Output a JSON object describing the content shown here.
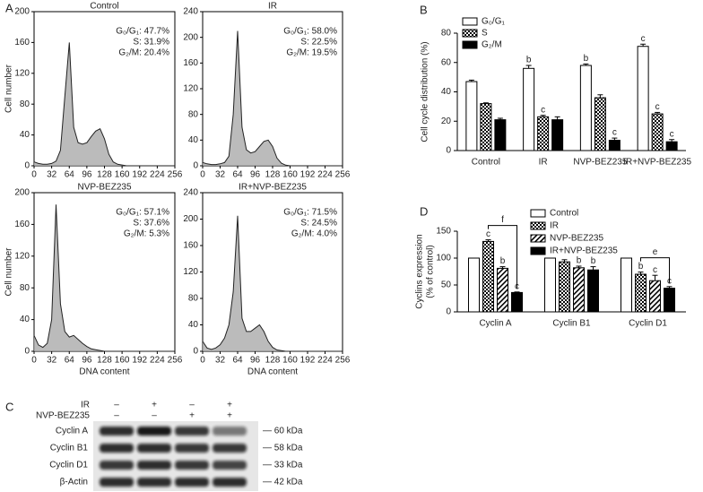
{
  "panel_labels": [
    "A",
    "B",
    "C",
    "D"
  ],
  "chart_data": [
    {
      "type": "area",
      "title": "Control",
      "y_label": "Cell number",
      "annotations": [
        "G₀/G₁: 47.7%",
        "S: 31.9%",
        "G₂/M: 20.4%"
      ],
      "x": [
        0,
        8,
        16,
        24,
        32,
        40,
        48,
        56,
        64,
        72,
        80,
        88,
        96,
        104,
        112,
        120,
        128,
        136,
        144,
        152,
        160,
        168,
        176,
        184,
        192,
        200,
        208,
        216,
        224,
        232,
        240,
        248,
        256
      ],
      "values": [
        5,
        3,
        2,
        2,
        3,
        6,
        20,
        90,
        160,
        50,
        30,
        28,
        30,
        38,
        45,
        48,
        35,
        15,
        5,
        2,
        1,
        0,
        0,
        0,
        0,
        0,
        0,
        0,
        0,
        0,
        0,
        0,
        0
      ],
      "xlim": [
        0,
        256
      ],
      "xticks": [
        0,
        32,
        64,
        96,
        128,
        160,
        192,
        224,
        256
      ],
      "ylim": [
        0,
        200
      ],
      "yticks": [
        0,
        40,
        80,
        120,
        160,
        200
      ],
      "color": "#aaaaaa"
    },
    {
      "type": "area",
      "title": "IR",
      "annotations": [
        "G₀/G₁: 58.0%",
        "S: 22.5%",
        "G₂/M: 19.5%"
      ],
      "x": [
        0,
        8,
        16,
        24,
        32,
        40,
        48,
        56,
        64,
        72,
        80,
        88,
        96,
        104,
        112,
        120,
        128,
        136,
        144,
        152,
        160,
        168,
        176,
        184,
        192,
        200,
        208,
        216,
        224,
        232,
        240,
        248,
        256
      ],
      "values": [
        5,
        3,
        2,
        2,
        3,
        5,
        15,
        80,
        210,
        60,
        25,
        20,
        22,
        30,
        38,
        40,
        30,
        12,
        4,
        1,
        0,
        0,
        0,
        0,
        0,
        0,
        0,
        0,
        0,
        0,
        0,
        0,
        0
      ],
      "xlim": [
        0,
        256
      ],
      "xticks": [
        0,
        32,
        64,
        96,
        128,
        160,
        192,
        224,
        256
      ],
      "ylim": [
        0,
        240
      ],
      "yticks": [
        0,
        40,
        80,
        120,
        160,
        200,
        240
      ],
      "color": "#aaaaaa"
    },
    {
      "type": "area",
      "title": "NVP-BEZ235",
      "y_label": "Cell number",
      "x_label": "DNA content",
      "annotations": [
        "G₀/G₁: 57.1%",
        "S: 37.6%",
        "G₂/M: 5.3%"
      ],
      "x": [
        0,
        8,
        16,
        24,
        32,
        40,
        48,
        56,
        64,
        72,
        80,
        88,
        96,
        104,
        112,
        120,
        128,
        136,
        144,
        152,
        160,
        168,
        176,
        184,
        192,
        200,
        208,
        216,
        224,
        232,
        240,
        248,
        256
      ],
      "values": [
        20,
        8,
        5,
        10,
        40,
        185,
        60,
        25,
        18,
        20,
        15,
        10,
        6,
        3,
        2,
        1,
        0,
        0,
        0,
        0,
        0,
        0,
        0,
        0,
        0,
        0,
        0,
        0,
        0,
        0,
        0,
        0,
        0
      ],
      "xlim": [
        0,
        256
      ],
      "xticks": [
        0,
        32,
        64,
        96,
        128,
        160,
        192,
        224,
        256
      ],
      "ylim": [
        0,
        200
      ],
      "yticks": [
        0,
        40,
        80,
        120,
        160,
        200
      ],
      "color": "#aaaaaa"
    },
    {
      "type": "area",
      "title": "IR+NVP-BEZ235",
      "x_label": "DNA content",
      "annotations": [
        "G₀/G₁: 71.5%",
        "S: 24.5%",
        "G₂/M: 4.0%"
      ],
      "x": [
        0,
        8,
        16,
        24,
        32,
        40,
        48,
        56,
        64,
        72,
        80,
        88,
        96,
        104,
        112,
        120,
        128,
        136,
        144,
        152,
        160,
        168,
        176,
        184,
        192,
        200,
        208,
        216,
        224,
        232,
        240,
        248,
        256
      ],
      "values": [
        15,
        5,
        3,
        5,
        10,
        20,
        40,
        90,
        205,
        50,
        30,
        30,
        35,
        40,
        30,
        15,
        6,
        2,
        1,
        0,
        0,
        0,
        0,
        0,
        0,
        0,
        0,
        0,
        0,
        0,
        0,
        0,
        0
      ],
      "xlim": [
        0,
        256
      ],
      "xticks": [
        0,
        32,
        64,
        96,
        128,
        160,
        192,
        224,
        256
      ],
      "ylim": [
        0,
        240
      ],
      "yticks": [
        0,
        40,
        80,
        120,
        160,
        200,
        240
      ],
      "color": "#aaaaaa"
    },
    {
      "type": "bar",
      "y_label": [
        "Cell cycle distribution (%)"
      ],
      "legend": "top-left",
      "categories": [
        "Control",
        "IR",
        "NVP-BEZ235",
        "IR+NVP-BEZ235"
      ],
      "series": [
        {
          "name": "G₀/G₁",
          "pattern": "white",
          "values": [
            47,
            56,
            58,
            71
          ],
          "errors": [
            1,
            2,
            1,
            1.5
          ],
          "sig_labels": [
            null,
            "b",
            "b",
            "c"
          ]
        },
        {
          "name": "S",
          "pattern": "checker",
          "values": [
            32,
            23,
            36,
            25
          ],
          "errors": [
            0.5,
            1,
            2,
            1
          ],
          "sig_labels": [
            null,
            "c",
            null,
            "c"
          ]
        },
        {
          "name": "G₂/M",
          "pattern": "black",
          "values": [
            21,
            21,
            7,
            6
          ],
          "errors": [
            1,
            2,
            1.5,
            1.5
          ],
          "sig_labels": [
            null,
            null,
            "c",
            "c"
          ]
        }
      ],
      "ylim": [
        0,
        80
      ],
      "yticks": [
        0,
        20,
        40,
        60,
        80
      ]
    },
    {
      "type": "bar",
      "y_label": [
        "Cyclins expression",
        "(% of control)"
      ],
      "legend": "top",
      "categories": [
        "Cyclin A",
        "Cyclin B1",
        "Cyclin D1"
      ],
      "series": [
        {
          "name": "Control",
          "pattern": "white",
          "values": [
            100,
            100,
            100
          ],
          "errors": [
            0,
            0,
            0
          ],
          "sig_labels": [
            null,
            null,
            null
          ]
        },
        {
          "name": "IR",
          "pattern": "checker",
          "values": [
            131,
            93,
            70
          ],
          "errors": [
            3,
            4,
            4
          ],
          "sig_labels": [
            "c",
            null,
            "b"
          ]
        },
        {
          "name": "NVP-BEZ235",
          "pattern": "hatch",
          "values": [
            81,
            82,
            58
          ],
          "errors": [
            3,
            3,
            10
          ],
          "sig_labels": [
            "b",
            "b",
            "c"
          ]
        },
        {
          "name": "IR+NVP-BEZ235",
          "pattern": "black",
          "values": [
            36,
            78,
            44
          ],
          "errors": [
            1,
            6,
            3
          ],
          "sig_labels": [
            "c",
            "b",
            "c"
          ]
        }
      ],
      "bracket_labels": [
        "f",
        null,
        "e"
      ],
      "ylim": [
        0,
        150
      ],
      "yticks": [
        0,
        50,
        100,
        150
      ]
    }
  ],
  "blot": {
    "treatments": [
      {
        "label": "IR",
        "signs": [
          "–",
          "+",
          "–",
          "+"
        ]
      },
      {
        "label": "NVP-BEZ235",
        "signs": [
          "–",
          "–",
          "+",
          "+"
        ]
      }
    ],
    "rows": [
      {
        "label": "Cyclin A",
        "size": "— 60 kDa"
      },
      {
        "label": "Cyclin B1",
        "size": "— 58 kDa"
      },
      {
        "label": "Cyclin D1",
        "size": "— 33 kDa"
      },
      {
        "label": "β-Actin",
        "size": "— 42 kDa"
      }
    ]
  }
}
